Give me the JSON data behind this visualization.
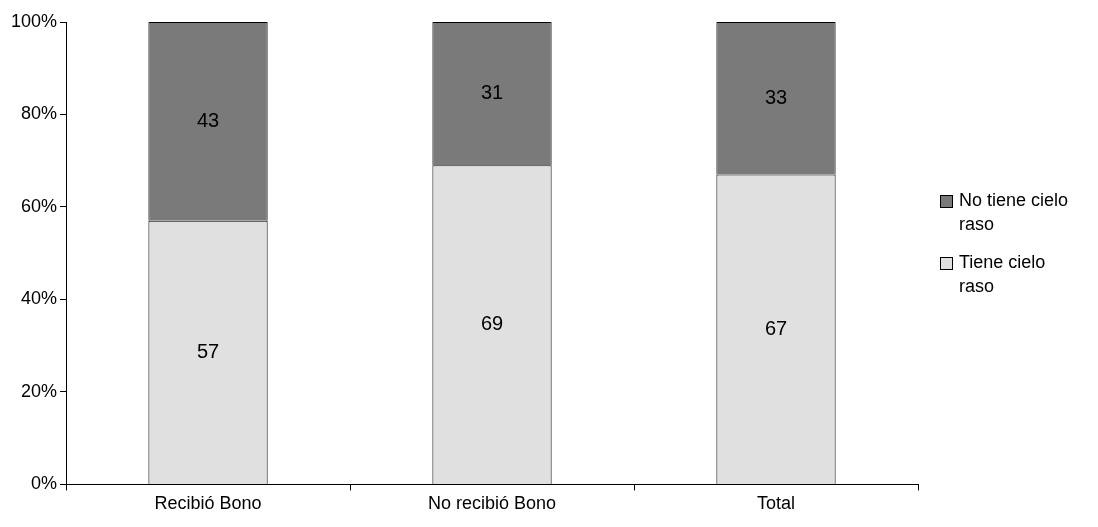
{
  "chart_data": {
    "type": "bar",
    "stacked": true,
    "categories": [
      "Recibió Bono",
      "No recibió Bono",
      "Total"
    ],
    "series": [
      {
        "name": "Tiene cielo raso",
        "color": "#e0e0e0",
        "values": [
          57,
          69,
          67
        ]
      },
      {
        "name": "No tiene cielo raso",
        "color": "#7a7a7a",
        "values": [
          43,
          31,
          33
        ]
      }
    ],
    "ylim": [
      0,
      100
    ],
    "yticks": [
      {
        "value": 0,
        "label": "0%"
      },
      {
        "value": 20,
        "label": "20%"
      },
      {
        "value": 40,
        "label": "40%"
      },
      {
        "value": 60,
        "label": "60%"
      },
      {
        "value": 80,
        "label": "80%"
      },
      {
        "value": 100,
        "label": "100%"
      }
    ],
    "data_labels": true,
    "legend": "right",
    "grid": false
  }
}
